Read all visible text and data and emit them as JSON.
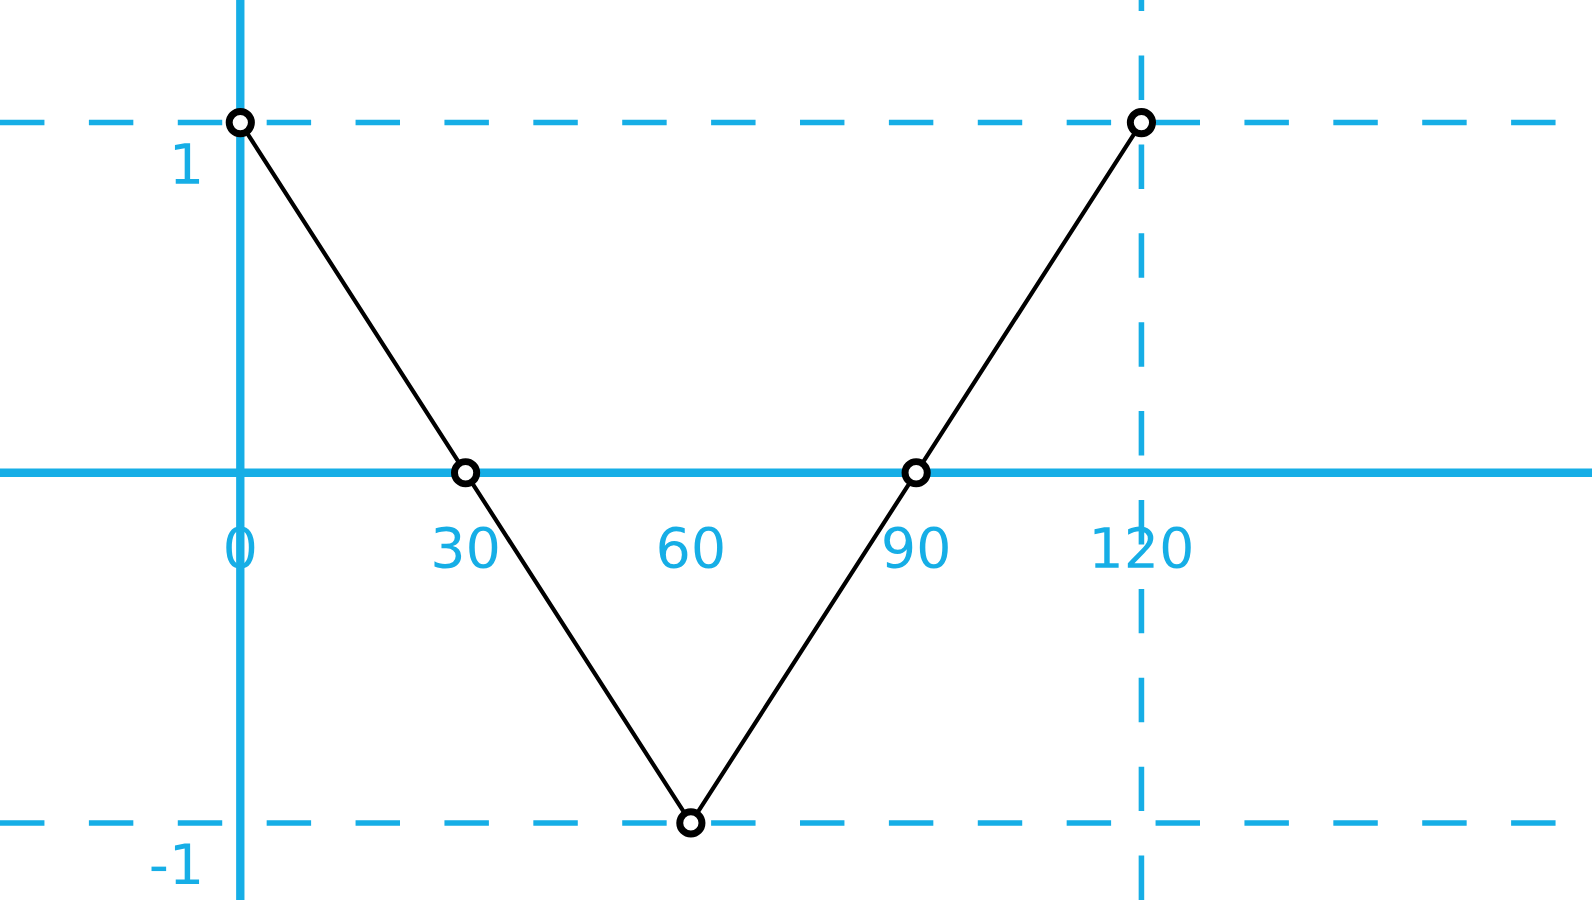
{
  "chart_data": {
    "type": "line",
    "x": [
      0,
      30,
      60,
      90,
      120
    ],
    "series": [
      {
        "color": "#000000",
        "values": [
          1,
          0,
          -1,
          0,
          1
        ]
      }
    ],
    "xlim": [
      -32,
      180
    ],
    "ylim": [
      -1.22,
      1.35
    ],
    "xticks": [
      0,
      30,
      60,
      90,
      120
    ],
    "yticks": [
      -1,
      1
    ],
    "marker": "circle",
    "line_style": "solid",
    "grid": false,
    "ref_lines": [
      {
        "axis": "y",
        "value": 1,
        "label": null,
        "color": "#16aee6",
        "line_style": "dashed"
      },
      {
        "axis": "y",
        "value": -1,
        "label": null,
        "color": "#16aee6",
        "line_style": "dashed"
      },
      {
        "axis": "x",
        "value": 120,
        "label": null,
        "color": "#16aee6",
        "line_style": "dashed"
      }
    ]
  }
}
